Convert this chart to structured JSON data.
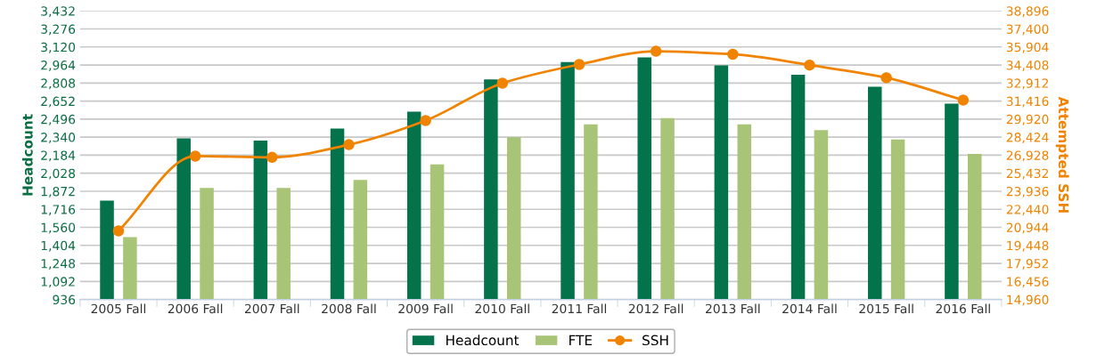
{
  "chart_data": {
    "type": "bar",
    "categories": [
      "2005 Fall",
      "2006 Fall",
      "2007 Fall",
      "2008 Fall",
      "2009 Fall",
      "2010 Fall",
      "2011 Fall",
      "2012 Fall",
      "2013 Fall",
      "2014 Fall",
      "2015 Fall",
      "2016 Fall"
    ],
    "series": [
      {
        "name": "Headcount",
        "color": "#04724a",
        "values": [
          1790,
          2330,
          2310,
          2415,
          2560,
          2840,
          2990,
          3030,
          2960,
          2880,
          2775,
          2630
        ]
      },
      {
        "name": "FTE",
        "color": "#a8c577",
        "values": [
          1475,
          1900,
          1900,
          1970,
          2105,
          2340,
          2450,
          2505,
          2450,
          2400,
          2320,
          2195
        ]
      },
      {
        "name": "SSH",
        "type": "line",
        "axis": "y2",
        "color": "#f08300",
        "values": [
          20650,
          26850,
          26750,
          27800,
          29800,
          32900,
          34450,
          35550,
          35300,
          34400,
          33350,
          31500
        ]
      }
    ],
    "ylabel": "Headcount",
    "y2label": "Attempted SSH",
    "ylim": [
      936,
      3432
    ],
    "yticks": [
      {
        "value": 936,
        "label": "936"
      },
      {
        "value": 1092,
        "label": "1,092"
      },
      {
        "value": 1248,
        "label": "1,248"
      },
      {
        "value": 1404,
        "label": "1,404"
      },
      {
        "value": 1560,
        "label": "1,560"
      },
      {
        "value": 1716,
        "label": "1,716"
      },
      {
        "value": 1872,
        "label": "1,872"
      },
      {
        "value": 2028,
        "label": "2,028"
      },
      {
        "value": 2184,
        "label": "2,184"
      },
      {
        "value": 2340,
        "label": "2,340"
      },
      {
        "value": 2496,
        "label": "2,496"
      },
      {
        "value": 2652,
        "label": "2,652"
      },
      {
        "value": 2808,
        "label": "2,808"
      },
      {
        "value": 2964,
        "label": "2,964"
      },
      {
        "value": 3120,
        "label": "3,120"
      },
      {
        "value": 3276,
        "label": "3,276"
      },
      {
        "value": 3432,
        "label": "3,432"
      }
    ],
    "y2lim": [
      14960,
      38896
    ],
    "y2ticks": [
      {
        "value": 14960,
        "label": "14,960"
      },
      {
        "value": 16456,
        "label": "16,456"
      },
      {
        "value": 17952,
        "label": "17,952"
      },
      {
        "value": 19448,
        "label": "19,448"
      },
      {
        "value": 20944,
        "label": "20,944"
      },
      {
        "value": 22440,
        "label": "22,440"
      },
      {
        "value": 23936,
        "label": "23,936"
      },
      {
        "value": 25432,
        "label": "25,432"
      },
      {
        "value": 26928,
        "label": "26,928"
      },
      {
        "value": 28424,
        "label": "28,424"
      },
      {
        "value": 29920,
        "label": "29,920"
      },
      {
        "value": 31416,
        "label": "31,416"
      },
      {
        "value": 32912,
        "label": "32,912"
      },
      {
        "value": 34408,
        "label": "34,408"
      },
      {
        "value": 35904,
        "label": "35,904"
      },
      {
        "value": 37400,
        "label": "37,400"
      },
      {
        "value": 38896,
        "label": "38,896"
      }
    ],
    "grid": "y",
    "legend": "bottom",
    "marker": "circle",
    "line_style": "solid"
  }
}
